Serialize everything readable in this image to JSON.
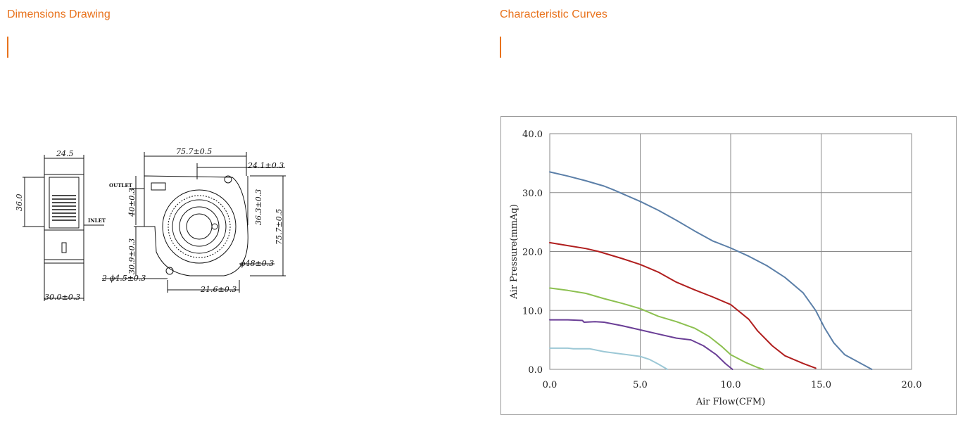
{
  "left_section": {
    "title": "Dimensions Drawing",
    "dimensions": {
      "top_width": "24.5",
      "left_height": "36.0",
      "bottom_width": "30.0±0.3",
      "inlet": "INLET",
      "outlet": "OUTLET",
      "overall_width": "75.7±0.5",
      "outlet_offset": "24.1±0.3",
      "right_inner_height": "36.3±0.3",
      "right_overall_height": "75.7±0.5",
      "left_upper_height": "40±0.3",
      "left_lower_height": "30.9±0.3",
      "impeller_diameter": "ϕ48±0.3",
      "mount_holes": "2-ϕ4.5±0.3",
      "bottom_offset": "21.6±0.3"
    }
  },
  "right_section": {
    "title": "Characteristic Curves"
  },
  "chart_data": {
    "type": "line",
    "xlabel": "Air Flow(CFM)",
    "ylabel": "Air Pressure(mmAq)",
    "xlim": [
      0,
      20
    ],
    "ylim": [
      0,
      40
    ],
    "x_ticks": [
      "0.0",
      "5.0",
      "10.0",
      "15.0",
      "20.0"
    ],
    "y_ticks": [
      "0.0",
      "10.0",
      "20.0",
      "30.0",
      "40.0"
    ],
    "grid": true,
    "series": [
      {
        "color": "#5b7fa8",
        "points": [
          [
            0,
            33.5
          ],
          [
            1,
            32.8
          ],
          [
            2,
            32
          ],
          [
            3,
            31.1
          ],
          [
            3.5,
            30.5
          ],
          [
            5,
            28.5
          ],
          [
            6,
            27
          ],
          [
            7,
            25.3
          ],
          [
            8,
            23.5
          ],
          [
            9,
            21.8
          ],
          [
            10,
            20.6
          ],
          [
            11,
            19.2
          ],
          [
            12,
            17.6
          ],
          [
            13,
            15.6
          ],
          [
            14,
            13
          ],
          [
            14.7,
            10
          ],
          [
            15.2,
            7
          ],
          [
            15.7,
            4.5
          ],
          [
            16.3,
            2.5
          ],
          [
            17.2,
            1
          ],
          [
            17.8,
            0
          ]
        ]
      },
      {
        "color": "#b01e1e",
        "points": [
          [
            0,
            21.5
          ],
          [
            1,
            21
          ],
          [
            2,
            20.5
          ],
          [
            2.7,
            20
          ],
          [
            4,
            18.8
          ],
          [
            5,
            17.8
          ],
          [
            6,
            16.5
          ],
          [
            7,
            14.8
          ],
          [
            8,
            13.5
          ],
          [
            9,
            12.3
          ],
          [
            10,
            11
          ],
          [
            11,
            8.5
          ],
          [
            11.5,
            6.5
          ],
          [
            12.3,
            4
          ],
          [
            13,
            2.3
          ],
          [
            14,
            1
          ],
          [
            14.7,
            0.2
          ]
        ]
      },
      {
        "color": "#8cc050",
        "points": [
          [
            0,
            13.8
          ],
          [
            1,
            13.4
          ],
          [
            2,
            12.9
          ],
          [
            3,
            12
          ],
          [
            4,
            11.2
          ],
          [
            5,
            10.3
          ],
          [
            6,
            9
          ],
          [
            7,
            8.1
          ],
          [
            8,
            7
          ],
          [
            8.8,
            5.6
          ],
          [
            9.5,
            3.9
          ],
          [
            10,
            2.5
          ],
          [
            10.8,
            1.2
          ],
          [
            11.5,
            0.3
          ],
          [
            11.8,
            0
          ]
        ]
      },
      {
        "color": "#6a3e96",
        "points": [
          [
            0,
            8.4
          ],
          [
            1,
            8.4
          ],
          [
            1.8,
            8.3
          ],
          [
            1.9,
            8
          ],
          [
            2.5,
            8.1
          ],
          [
            3,
            8
          ],
          [
            4,
            7.4
          ],
          [
            5,
            6.7
          ],
          [
            6,
            6
          ],
          [
            7,
            5.3
          ],
          [
            7.8,
            5
          ],
          [
            8.5,
            4
          ],
          [
            9.2,
            2.5
          ],
          [
            9.7,
            1
          ],
          [
            10.1,
            0
          ]
        ]
      },
      {
        "color": "#9cc8d6",
        "points": [
          [
            0,
            3.6
          ],
          [
            1,
            3.6
          ],
          [
            1.3,
            3.5
          ],
          [
            2.2,
            3.5
          ],
          [
            3,
            3
          ],
          [
            4,
            2.6
          ],
          [
            5,
            2.2
          ],
          [
            5.5,
            1.7
          ],
          [
            6,
            0.9
          ],
          [
            6.5,
            0
          ]
        ]
      }
    ]
  }
}
